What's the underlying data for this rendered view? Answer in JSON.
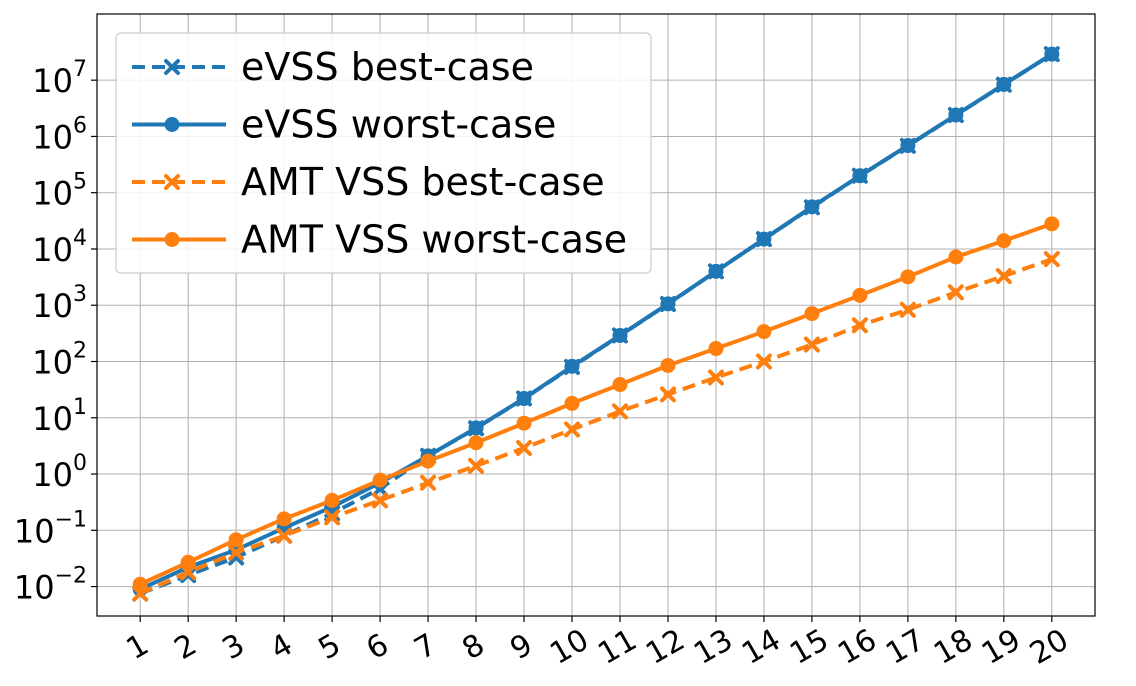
{
  "chart_data": {
    "type": "line",
    "title": "",
    "xlabel": "",
    "ylabel": "",
    "x": [
      1,
      2,
      3,
      4,
      5,
      6,
      7,
      8,
      9,
      10,
      11,
      12,
      13,
      14,
      15,
      16,
      17,
      18,
      19,
      20
    ],
    "x_tick_labels": [
      "1",
      "2",
      "3",
      "4",
      "5",
      "6",
      "7",
      "8",
      "9",
      "10",
      "11",
      "12",
      "13",
      "14",
      "15",
      "16",
      "17",
      "18",
      "19",
      "20"
    ],
    "y_scale": "log",
    "ylim": [
      0.003,
      150000000
    ],
    "y_ticks": [
      {
        "value": 0.01,
        "base": "10",
        "exp": "−2"
      },
      {
        "value": 0.1,
        "base": "10",
        "exp": "−1"
      },
      {
        "value": 1,
        "base": "10",
        "exp": "0"
      },
      {
        "value": 10,
        "base": "10",
        "exp": "1"
      },
      {
        "value": 100,
        "base": "10",
        "exp": "2"
      },
      {
        "value": 1000,
        "base": "10",
        "exp": "3"
      },
      {
        "value": 10000,
        "base": "10",
        "exp": "4"
      },
      {
        "value": 100000,
        "base": "10",
        "exp": "5"
      },
      {
        "value": 1000000,
        "base": "10",
        "exp": "6"
      },
      {
        "value": 10000000,
        "base": "10",
        "exp": "7"
      }
    ],
    "grid": true,
    "legend_position": "top-left",
    "series": [
      {
        "name": "eVSS best-case",
        "color": "#1f77b4",
        "dash": true,
        "marker": "x",
        "values": [
          0.0075,
          0.016,
          0.033,
          0.08,
          0.2,
          0.55,
          2.1,
          6.5,
          22,
          80,
          290,
          1050,
          4000,
          15000,
          55000,
          200000,
          680000,
          2400000,
          8300000,
          29000000
        ]
      },
      {
        "name": "eVSS worst-case",
        "color": "#1f77b4",
        "dash": false,
        "marker": "o",
        "values": [
          0.009,
          0.022,
          0.045,
          0.11,
          0.26,
          0.7,
          2.1,
          6.6,
          22,
          82,
          290,
          1060,
          4000,
          15000,
          56000,
          200000,
          690000,
          2400000,
          8400000,
          29000000
        ]
      },
      {
        "name": "AMT VSS best-case",
        "color": "#ff7f0e",
        "dash": true,
        "marker": "x",
        "values": [
          0.0075,
          0.018,
          0.04,
          0.08,
          0.17,
          0.34,
          0.7,
          1.4,
          2.9,
          6.2,
          13,
          26,
          52,
          100,
          200,
          440,
          830,
          1700,
          3300,
          6600
        ]
      },
      {
        "name": "AMT VSS worst-case",
        "color": "#ff7f0e",
        "dash": false,
        "marker": "o",
        "values": [
          0.011,
          0.027,
          0.068,
          0.16,
          0.34,
          0.78,
          1.7,
          3.6,
          8,
          18,
          39,
          85,
          170,
          340,
          710,
          1500,
          3200,
          7200,
          14000,
          28000
        ]
      }
    ]
  }
}
